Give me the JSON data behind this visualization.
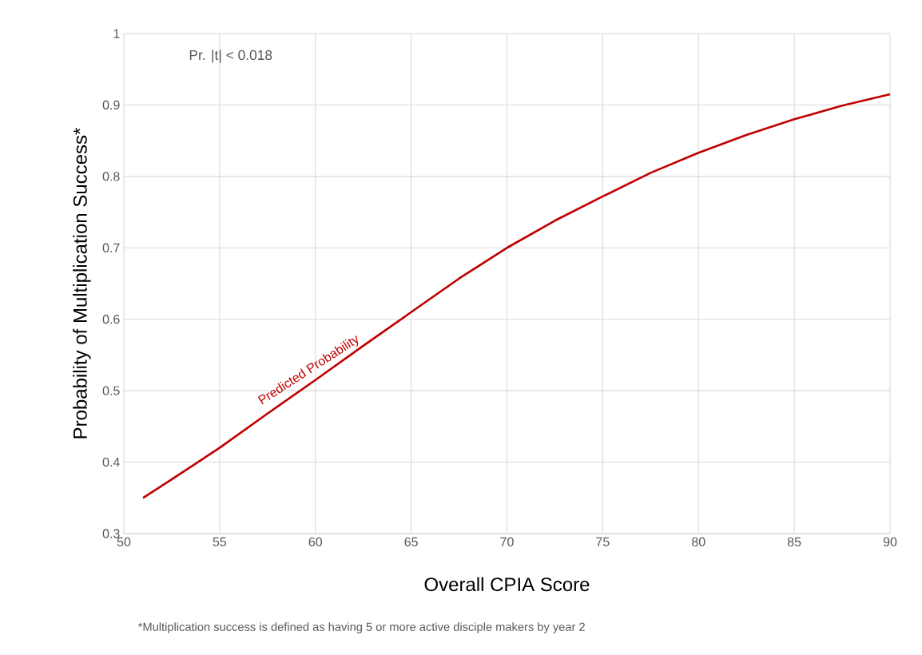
{
  "chart_data": {
    "type": "line",
    "xlabel": "Overall CPIA Score",
    "ylabel": "Probability of Multiplication Success*",
    "annotations": [
      "Pr. |t| < 0.018",
      "*Multiplication success is defined as having 5 or more active disciple makers by year 2"
    ],
    "x": [
      51,
      52.5,
      55,
      57.5,
      60,
      62.5,
      65,
      67.5,
      70,
      72.5,
      75,
      77.5,
      80,
      82.5,
      85,
      87.5,
      90
    ],
    "series": [
      {
        "name": "Predicted Probability",
        "color": "#c00000",
        "values": [
          0.35,
          0.376,
          0.42,
          0.468,
          0.515,
          0.563,
          0.61,
          0.657,
          0.7,
          0.738,
          0.772,
          0.805,
          0.833,
          0.858,
          0.88,
          0.899,
          0.915
        ]
      }
    ],
    "xlim": [
      50,
      90
    ],
    "ylim": [
      0.3,
      1
    ],
    "xticks": [
      50,
      55,
      60,
      65,
      70,
      75,
      80,
      85,
      90
    ],
    "yticks": [
      0.3,
      0.4,
      0.5,
      0.6,
      0.7,
      0.8,
      0.9,
      1
    ],
    "grid": true,
    "marker": "none",
    "line_style": "solid"
  }
}
